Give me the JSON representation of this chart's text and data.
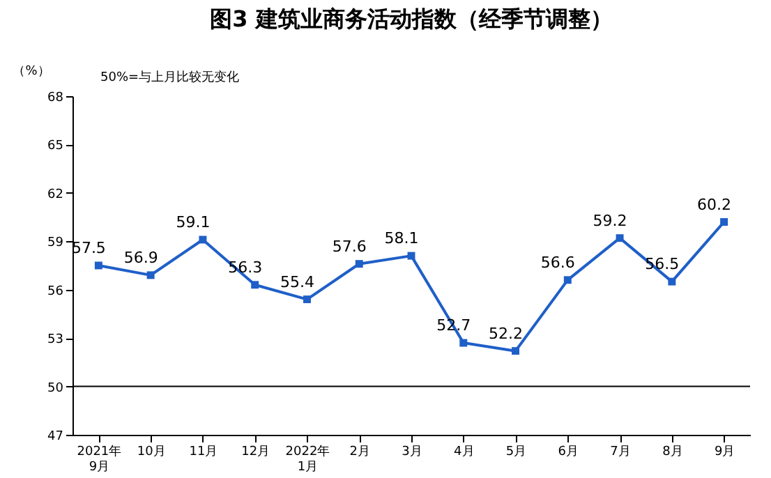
{
  "chart_data": {
    "type": "line",
    "title": "图3 建筑业商务活动指数（经季节调整）",
    "ylabel": "（%）",
    "annotations": [
      "50%=与上月比较无变化"
    ],
    "categories": [
      "2021年\n9月",
      "10月",
      "11月",
      "12月",
      "2022年\n1月",
      "2月",
      "3月",
      "4月",
      "5月",
      "6月",
      "7月",
      "8月",
      "9月"
    ],
    "series": [
      {
        "color": "#1f5fc8",
        "values": [
          57.5,
          56.9,
          59.1,
          56.3,
          55.4,
          57.6,
          58.1,
          52.7,
          52.2,
          56.6,
          59.2,
          56.5,
          60.2
        ]
      }
    ],
    "ylim": [
      47,
      68
    ],
    "yticks": [
      47,
      50,
      53,
      56,
      59,
      62,
      65,
      68
    ],
    "ref_lines": [
      {
        "axis": "y",
        "value": 50,
        "color": "#000000"
      }
    ],
    "marker": "square",
    "line_style": "solid",
    "data_labels": true,
    "grid": false,
    "legend": false
  }
}
